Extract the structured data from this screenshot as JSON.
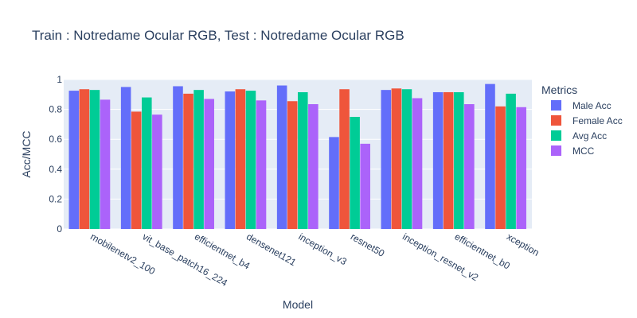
{
  "chart_data": {
    "type": "bar",
    "title": "Train : Notredame Ocular RGB, Test : Notredame Ocular RGB",
    "xlabel": "Model",
    "ylabel": "Acc/MCC",
    "ylim": [
      0,
      1.0
    ],
    "yticks": [
      0,
      0.2,
      0.4,
      0.6,
      0.8,
      1
    ],
    "ytick_labels": [
      "0",
      "0.2",
      "0.4",
      "0.6",
      "0.8",
      "1"
    ],
    "grid": true,
    "legend_title": "Metrics",
    "legend_position": "right",
    "categories": [
      "mobilenetv2_100",
      "vit_base_patch16_224",
      "efficientnet_b4",
      "densenet121",
      "inception_v3",
      "resnet50",
      "inception_resnet_v2",
      "efficientnet_b0",
      "xception"
    ],
    "series": [
      {
        "name": "Male Acc",
        "color": "#636efa",
        "values": [
          0.925,
          0.95,
          0.955,
          0.92,
          0.96,
          0.615,
          0.93,
          0.915,
          0.97
        ]
      },
      {
        "name": "Female Acc",
        "color": "#ef553b",
        "values": [
          0.935,
          0.785,
          0.905,
          0.935,
          0.855,
          0.935,
          0.94,
          0.915,
          0.82
        ]
      },
      {
        "name": "Avg Acc",
        "color": "#00cc96",
        "values": [
          0.93,
          0.88,
          0.93,
          0.925,
          0.915,
          0.75,
          0.935,
          0.915,
          0.905
        ]
      },
      {
        "name": "MCC",
        "color": "#ab63fa",
        "values": [
          0.865,
          0.765,
          0.87,
          0.86,
          0.835,
          0.57,
          0.875,
          0.835,
          0.815
        ]
      }
    ]
  }
}
